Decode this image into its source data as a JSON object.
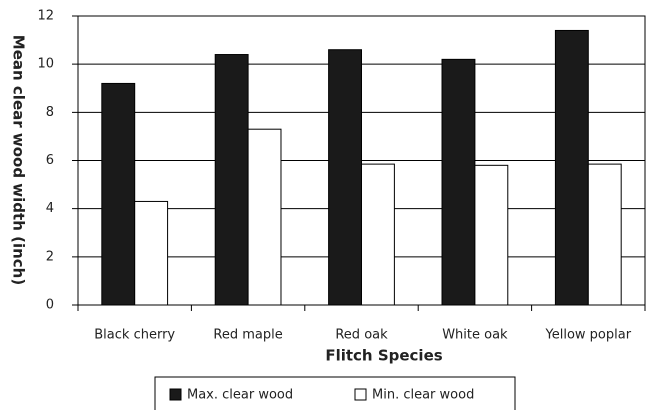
{
  "chart_data": {
    "type": "bar",
    "categories": [
      "Black cherry",
      "Red maple",
      "Red oak",
      "White oak",
      "Yellow poplar"
    ],
    "series": [
      {
        "name": "Max. clear wood",
        "color": "#1a1a1a",
        "values": [
          9.2,
          10.4,
          10.6,
          10.2,
          11.4
        ]
      },
      {
        "name": "Min. clear wood",
        "color": "#ffffff",
        "values": [
          4.3,
          7.3,
          5.85,
          5.8,
          5.85
        ]
      }
    ],
    "xlabel": "Flitch Species",
    "ylabel": "Mean clear wood width (inch)",
    "ylim": [
      0,
      12
    ],
    "yticks": [
      0,
      2,
      4,
      6,
      8,
      10,
      12
    ],
    "grid": true,
    "legend": "bottom"
  }
}
